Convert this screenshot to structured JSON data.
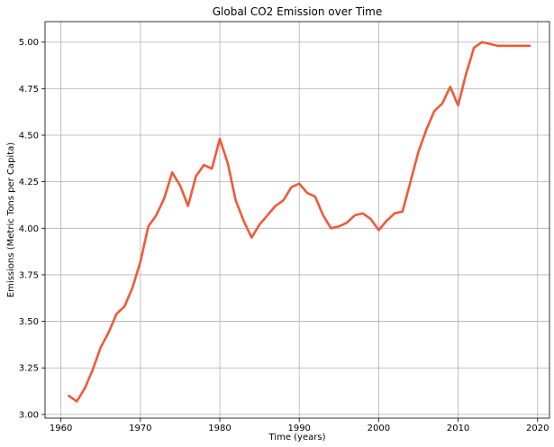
{
  "chart_data": {
    "type": "line",
    "title": "Global CO2 Emission over Time",
    "xlabel": "Time (years)",
    "ylabel": "Emissions (Metric Tons per Capita)",
    "xlim": [
      1958,
      2021.5
    ],
    "ylim": [
      2.98,
      5.11
    ],
    "grid": true,
    "x_ticks": [
      1960,
      1970,
      1980,
      1990,
      2000,
      2010,
      2020
    ],
    "y_ticks": [
      3.0,
      3.25,
      3.5,
      3.75,
      4.0,
      4.25,
      4.5,
      4.75,
      5.0
    ],
    "line_color": "#f05a38",
    "series": [
      {
        "x": [
          1961,
          1962,
          1963,
          1964,
          1965,
          1966,
          1967,
          1968,
          1969,
          1970,
          1971,
          1972,
          1973,
          1974,
          1975,
          1976,
          1977,
          1978,
          1979,
          1980,
          1981,
          1982,
          1983,
          1984,
          1985,
          1986,
          1987,
          1988,
          1989,
          1990,
          1991,
          1992,
          1993,
          1994,
          1995,
          1996,
          1997,
          1998,
          1999,
          2000,
          2001,
          2002,
          2003,
          2004,
          2005,
          2006,
          2007,
          2008,
          2009,
          2010,
          2011,
          2012,
          2013,
          2014,
          2015,
          2016,
          2017,
          2018,
          2019
        ],
        "values": [
          3.1,
          3.07,
          3.14,
          3.24,
          3.36,
          3.44,
          3.54,
          3.58,
          3.68,
          3.82,
          4.01,
          4.07,
          4.16,
          4.3,
          4.23,
          4.12,
          4.28,
          4.34,
          4.32,
          4.48,
          4.35,
          4.15,
          4.04,
          3.95,
          4.02,
          4.07,
          4.12,
          4.15,
          4.22,
          4.24,
          4.19,
          4.17,
          4.07,
          4.0,
          4.01,
          4.03,
          4.07,
          4.08,
          4.05,
          3.99,
          4.04,
          4.08,
          4.09,
          4.25,
          4.41,
          4.53,
          4.63,
          4.67,
          4.76,
          4.66,
          4.83,
          4.97,
          5.0,
          4.99,
          4.98,
          4.98,
          4.98,
          4.98,
          4.98
        ]
      }
    ]
  }
}
